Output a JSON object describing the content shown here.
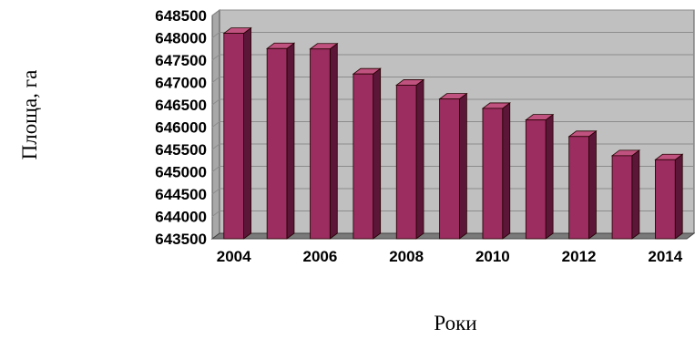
{
  "chart_data": {
    "type": "bar",
    "title": "",
    "xlabel": "Роки",
    "ylabel": "Площа, га",
    "x": [
      2004,
      2005,
      2006,
      2007,
      2008,
      2009,
      2010,
      2011,
      2012,
      2013,
      2014
    ],
    "x_tick_labels": [
      "2004",
      "2006",
      "2008",
      "2010",
      "2012",
      "2014"
    ],
    "values": [
      648100,
      647760,
      647750,
      647190,
      646940,
      646630,
      646420,
      646160,
      645790,
      645360,
      645270
    ],
    "ylim": [
      643500,
      648500
    ],
    "y_tick_labels": [
      "648500",
      "648000",
      "647500",
      "647000",
      "646500",
      "646000",
      "645500",
      "645000",
      "644500",
      "644000",
      "643500"
    ],
    "grid": true,
    "colors": {
      "bar_front": "#9b2d60",
      "bar_side": "#5c1638",
      "bar_top": "#c0527f",
      "plot_background": "#c0c0c0",
      "floor": "#7a7a7a",
      "gridline": "#8c8c8c"
    }
  }
}
